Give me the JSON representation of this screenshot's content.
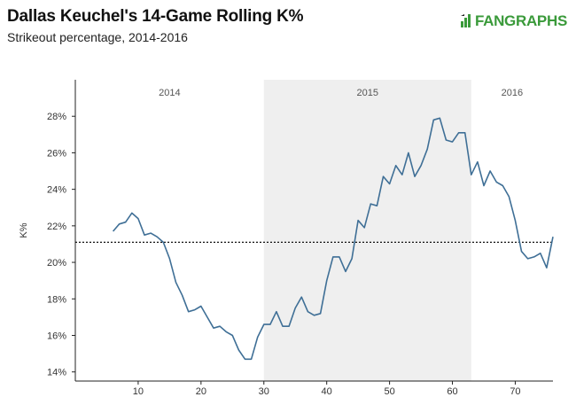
{
  "header": {
    "title": "Dallas Keuchel's 14-Game Rolling K%",
    "subtitle": "Strikeout percentage, 2014-2016"
  },
  "logo": {
    "text": "FANGRAPHS",
    "icon": "fangraphs-logo-icon",
    "color": "#3a9a3a"
  },
  "chart_data": {
    "type": "line",
    "title": "Dallas Keuchel's 14-Game Rolling K%",
    "subtitle": "Strikeout percentage, 2014-2016",
    "xlabel": "",
    "ylabel": "K%",
    "xlim": [
      0,
      76
    ],
    "ylim": [
      13.5,
      30
    ],
    "x_ticks": [
      10,
      20,
      30,
      40,
      50,
      60,
      70
    ],
    "y_ticks": [
      14,
      16,
      18,
      20,
      22,
      24,
      26,
      28
    ],
    "y_tick_labels": [
      "14%",
      "16%",
      "18%",
      "20%",
      "22%",
      "24%",
      "26%",
      "28%"
    ],
    "seasons": [
      {
        "label": "2014",
        "start": 0,
        "end": 30,
        "shaded": false
      },
      {
        "label": "2015",
        "start": 30,
        "end": 63,
        "shaded": true
      },
      {
        "label": "2016",
        "start": 63,
        "end": 76,
        "shaded": false
      }
    ],
    "reference_line": {
      "y": 21.1,
      "style": "dotted"
    },
    "series": [
      {
        "name": "14-Game Rolling K%",
        "color": "#3f6f96",
        "x": [
          6,
          7,
          8,
          9,
          10,
          11,
          12,
          13,
          14,
          15,
          16,
          17,
          18,
          19,
          20,
          21,
          22,
          23,
          24,
          25,
          26,
          27,
          28,
          29,
          30,
          31,
          32,
          33,
          34,
          35,
          36,
          37,
          38,
          39,
          40,
          41,
          42,
          43,
          44,
          45,
          46,
          47,
          48,
          49,
          50,
          51,
          52,
          53,
          54,
          55,
          56,
          57,
          58,
          59,
          60,
          61,
          62,
          63,
          64,
          65,
          66,
          67,
          68,
          69,
          70,
          71,
          72,
          73,
          74,
          75,
          76
        ],
        "y": [
          21.7,
          22.1,
          22.2,
          22.7,
          22.4,
          21.5,
          21.6,
          21.4,
          21.1,
          20.2,
          18.9,
          18.2,
          17.3,
          17.4,
          17.6,
          17.0,
          16.4,
          16.5,
          16.2,
          16.0,
          15.2,
          14.7,
          14.7,
          15.9,
          16.6,
          16.6,
          17.3,
          16.5,
          16.5,
          17.5,
          18.1,
          17.3,
          17.1,
          17.2,
          19.0,
          20.3,
          20.3,
          19.5,
          20.2,
          22.3,
          21.9,
          23.2,
          23.1,
          24.7,
          24.3,
          25.3,
          24.8,
          26.0,
          24.7,
          25.3,
          26.2,
          27.8,
          27.9,
          26.7,
          26.6,
          27.1,
          27.1,
          24.8,
          25.5,
          24.2,
          25.0,
          24.4,
          24.2,
          23.6,
          22.3,
          20.6,
          20.2,
          20.3,
          20.5,
          19.7,
          21.4
        ]
      }
    ]
  }
}
